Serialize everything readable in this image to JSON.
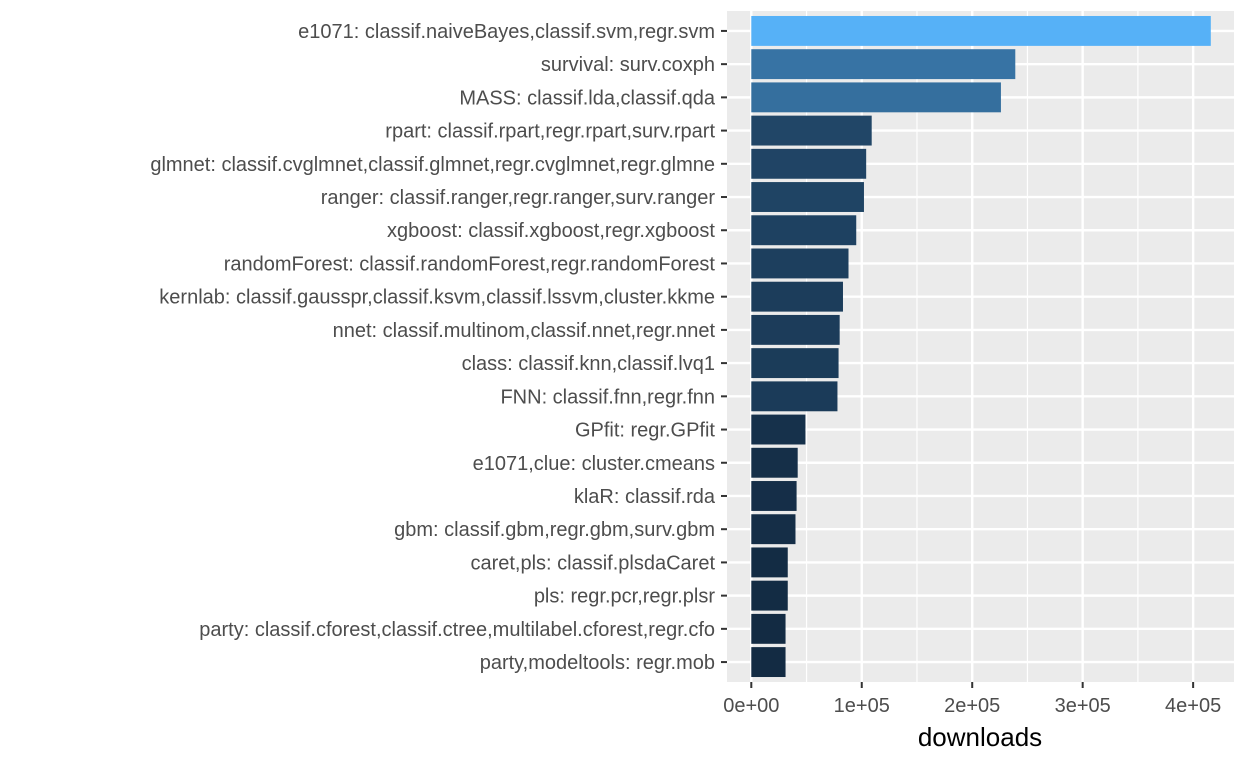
{
  "chart_data": {
    "type": "bar",
    "orientation": "horizontal",
    "xlabel": "downloads",
    "ylabel": "",
    "xlim": [
      -22000,
      437000
    ],
    "xticks": [
      0,
      100000,
      200000,
      300000,
      400000
    ],
    "xtick_labels": [
      "0e+00",
      "1e+05",
      "2e+05",
      "3e+05",
      "4e+05"
    ],
    "grid": true,
    "legend": "none",
    "fill_scale": {
      "low": "#132b43",
      "high": "#56b1f7"
    },
    "categories": [
      "e1071: classif.naiveBayes,classif.svm,regr.svm",
      "survival: surv.coxph",
      "MASS: classif.lda,classif.qda",
      "rpart: classif.rpart,regr.rpart,surv.rpart",
      "glmnet: classif.cvglmnet,classif.glmnet,regr.cvglmnet,regr.glmne",
      "ranger: classif.ranger,regr.ranger,surv.ranger",
      "xgboost: classif.xgboost,regr.xgboost",
      "randomForest: classif.randomForest,regr.randomForest",
      "kernlab: classif.gausspr,classif.ksvm,classif.lssvm,cluster.kkme",
      "nnet: classif.multinom,classif.nnet,regr.nnet",
      "class: classif.knn,classif.lvq1",
      "FNN: classif.fnn,regr.fnn",
      "GPfit: regr.GPfit",
      "e1071,clue: cluster.cmeans",
      "klaR: classif.rda",
      "gbm: classif.gbm,regr.gbm,surv.gbm",
      "caret,pls: classif.plsdaCaret",
      "pls: regr.pcr,regr.plsr",
      "party: classif.cforest,classif.ctree,multilabel.cforest,regr.cfo",
      "party,modeltools: regr.mob"
    ],
    "values": [
      416000,
      239000,
      226000,
      109000,
      104000,
      102000,
      95000,
      88000,
      83000,
      80000,
      79000,
      78000,
      49000,
      42000,
      41000,
      40000,
      33000,
      33000,
      31000,
      31000
    ],
    "fill_values": [
      416000,
      239000,
      226000,
      109000,
      104000,
      102000,
      95000,
      88000,
      83000,
      80000,
      79000,
      78000,
      49000,
      42000,
      41000,
      40000,
      33000,
      33000,
      31000,
      31000
    ]
  }
}
